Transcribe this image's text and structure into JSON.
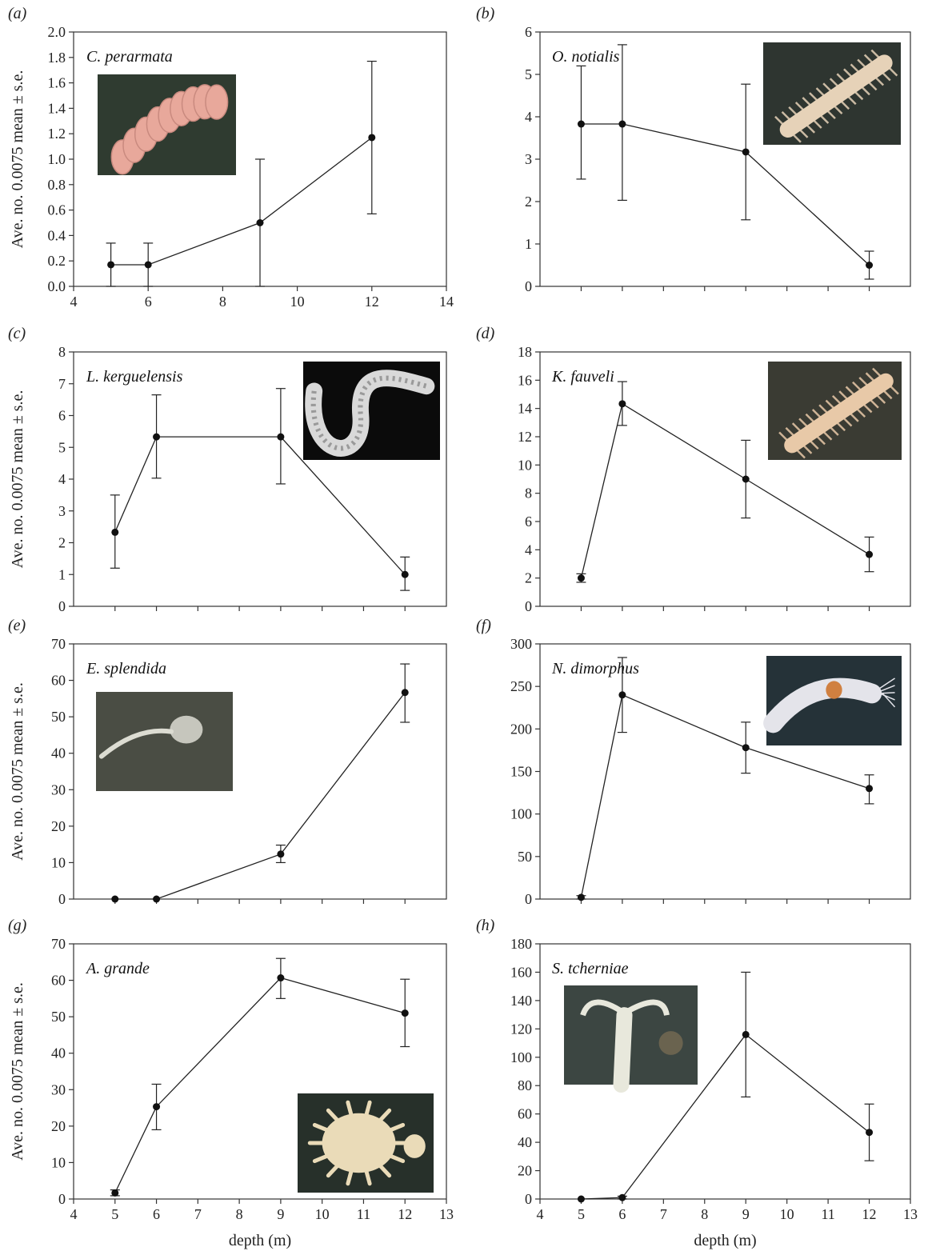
{
  "chart_data": [
    {
      "type": "line",
      "panel": "(a)",
      "species": "C. perarmata",
      "ylabel": "Ave. no. 0.0075 mean ± s.e.",
      "xlabel": "",
      "xlim": [
        4,
        14
      ],
      "ylim": [
        0,
        2.0
      ],
      "xticks": [
        4,
        6,
        8,
        10,
        12,
        14
      ],
      "xtick_labels": [
        "4",
        "6",
        "8",
        "10",
        "12",
        "14"
      ],
      "yticks": [
        0,
        0.2,
        0.4,
        0.6,
        0.8,
        1.0,
        1.2,
        1.4,
        1.6,
        1.8,
        2.0
      ],
      "ytick_labels": [
        "0.0",
        "0.2",
        "0.4",
        "0.6",
        "0.8",
        "1.0",
        "1.2",
        "1.4",
        "1.6",
        "1.8",
        "2.0"
      ],
      "x": [
        5,
        6,
        9,
        12
      ],
      "y": [
        0.17,
        0.17,
        0.5,
        1.17
      ],
      "err_low": [
        0.0,
        0.0,
        0.0,
        0.57
      ],
      "err_high": [
        0.34,
        0.34,
        1.0,
        1.77
      ],
      "photo": {
        "name": "c-perarmata-photo",
        "kind": "pinkworm",
        "bg": "#2f3b30",
        "fg": "#e8a89b",
        "pos": "upper-left"
      }
    },
    {
      "type": "line",
      "panel": "(b)",
      "species": "O. notialis",
      "ylabel": "",
      "xlabel": "",
      "xlim": [
        4,
        13
      ],
      "ylim": [
        0,
        6
      ],
      "xticks": [
        5,
        6,
        7,
        8,
        9,
        10,
        11,
        12
      ],
      "xtick_labels": [],
      "yticks": [
        0,
        1,
        2,
        3,
        4,
        5,
        6
      ],
      "ytick_labels": [
        "0",
        "1",
        "2",
        "3",
        "4",
        "5",
        "6"
      ],
      "x": [
        5,
        6,
        9,
        12
      ],
      "y": [
        3.83,
        3.83,
        3.17,
        0.5
      ],
      "err_low": [
        2.53,
        2.03,
        1.57,
        0.17
      ],
      "err_high": [
        5.2,
        5.7,
        4.77,
        0.83
      ],
      "photo": {
        "name": "o-notialis-photo",
        "kind": "bristleworm",
        "bg": "#2e3530",
        "fg": "#e6d2b8",
        "pos": "upper-right"
      }
    },
    {
      "type": "line",
      "panel": "(c)",
      "species": "L. kerguelensis",
      "ylabel": "Ave. no. 0.0075 mean ± s.e.",
      "xlabel": "",
      "xlim": [
        4,
        13
      ],
      "ylim": [
        0,
        8
      ],
      "xticks": [
        5,
        6,
        7,
        8,
        9,
        10,
        11,
        12
      ],
      "xtick_labels": [],
      "yticks": [
        0,
        1,
        2,
        3,
        4,
        5,
        6,
        7,
        8
      ],
      "ytick_labels": [
        "0",
        "1",
        "2",
        "3",
        "4",
        "5",
        "6",
        "7",
        "8"
      ],
      "x": [
        5,
        6,
        9,
        12
      ],
      "y": [
        2.33,
        5.33,
        5.33,
        1.0
      ],
      "err_low": [
        1.2,
        4.03,
        3.85,
        0.5
      ],
      "err_high": [
        3.5,
        6.65,
        6.85,
        1.55
      ],
      "photo": {
        "name": "l-kerguelensis-photo",
        "kind": "curlworm",
        "bg": "#0b0b0b",
        "fg": "#d9d9d9",
        "pos": "upper-right"
      }
    },
    {
      "type": "line",
      "panel": "(d)",
      "species": "K. fauveli",
      "ylabel": "",
      "xlabel": "",
      "xlim": [
        4,
        13
      ],
      "ylim": [
        0,
        18
      ],
      "xticks": [
        5,
        6,
        7,
        8,
        9,
        10,
        11,
        12
      ],
      "xtick_labels": [],
      "yticks": [
        0,
        2,
        4,
        6,
        8,
        10,
        12,
        14,
        16,
        18
      ],
      "ytick_labels": [
        "0",
        "2",
        "4",
        "6",
        "8",
        "10",
        "12",
        "14",
        "16",
        "18"
      ],
      "x": [
        5,
        6,
        9,
        12
      ],
      "y": [
        2.0,
        14.33,
        9.0,
        3.67
      ],
      "err_low": [
        1.7,
        12.8,
        6.25,
        2.45
      ],
      "err_high": [
        2.3,
        15.9,
        11.75,
        4.9
      ],
      "photo": {
        "name": "k-fauveli-photo",
        "kind": "bristleworm",
        "bg": "#3a3b33",
        "fg": "#e8c9a8",
        "pos": "upper-right"
      }
    },
    {
      "type": "line",
      "panel": "(e)",
      "species": "E. splendida",
      "ylabel": "Ave. no. 0.0075 mean ± s.e.",
      "xlabel": "",
      "xlim": [
        4,
        13
      ],
      "ylim": [
        0,
        70
      ],
      "xticks": [
        5,
        6,
        7,
        8,
        9,
        10,
        11,
        12
      ],
      "xtick_labels": [],
      "yticks": [
        0,
        10,
        20,
        30,
        40,
        50,
        60,
        70
      ],
      "ytick_labels": [
        "0",
        "10",
        "20",
        "30",
        "40",
        "50",
        "60",
        "70"
      ],
      "x": [
        5,
        6,
        9,
        12
      ],
      "y": [
        0.0,
        0.0,
        12.33,
        56.67
      ],
      "err_low": [
        0.0,
        0.0,
        10.0,
        48.5
      ],
      "err_high": [
        0.0,
        0.0,
        14.8,
        64.5
      ],
      "photo": {
        "name": "e-splendida-photo",
        "kind": "thinworm",
        "bg": "#4a4d44",
        "fg": "#dcdcd2",
        "pos": "upper-left"
      }
    },
    {
      "type": "line",
      "panel": "(f)",
      "species": "N. dimorphus",
      "ylabel": "",
      "xlabel": "",
      "xlim": [
        4,
        13
      ],
      "ylim": [
        0,
        300
      ],
      "xticks": [
        5,
        6,
        7,
        8,
        9,
        10,
        11,
        12
      ],
      "xtick_labels": [],
      "yticks": [
        0,
        50,
        100,
        150,
        200,
        250,
        300
      ],
      "ytick_labels": [
        "0",
        "50",
        "100",
        "150",
        "200",
        "250",
        "300"
      ],
      "x": [
        5,
        6,
        9,
        12
      ],
      "y": [
        2,
        240,
        178,
        130
      ],
      "err_low": [
        0,
        196,
        148,
        112
      ],
      "err_high": [
        4,
        284,
        208,
        146
      ],
      "photo": {
        "name": "n-dimorphus-photo",
        "kind": "amphipod",
        "bg": "#253238",
        "fg": "#e4e4ea",
        "pos": "upper-right"
      }
    },
    {
      "type": "line",
      "panel": "(g)",
      "species": "A. grande",
      "ylabel": "Ave. no. 0.0075 mean ± s.e.",
      "xlabel": "depth (m)",
      "xlim": [
        4,
        13
      ],
      "ylim": [
        0,
        70
      ],
      "xticks": [
        4,
        5,
        6,
        7,
        8,
        9,
        10,
        11,
        12,
        13
      ],
      "xtick_labels": [
        "4",
        "5",
        "6",
        "7",
        "8",
        "9",
        "10",
        "11",
        "12",
        "13"
      ],
      "yticks": [
        0,
        10,
        20,
        30,
        40,
        50,
        60,
        70
      ],
      "ytick_labels": [
        "0",
        "10",
        "20",
        "30",
        "40",
        "50",
        "60",
        "70"
      ],
      "x": [
        5,
        6,
        9,
        12
      ],
      "y": [
        1.67,
        25.33,
        60.67,
        51.0
      ],
      "err_low": [
        0.9,
        19.0,
        55.0,
        41.8
      ],
      "err_high": [
        2.5,
        31.5,
        66.0,
        60.3
      ],
      "photo": {
        "name": "a-grande-photo",
        "kind": "isopod",
        "bg": "#27302a",
        "fg": "#eadbb8",
        "pos": "lower-right"
      }
    },
    {
      "type": "line",
      "panel": "(h)",
      "species": "S. tcherniae",
      "ylabel": "",
      "xlabel": "depth (m)",
      "xlim": [
        4,
        13
      ],
      "ylim": [
        0,
        180
      ],
      "xticks": [
        4,
        5,
        6,
        7,
        8,
        9,
        10,
        11,
        12,
        13
      ],
      "xtick_labels": [
        "4",
        "5",
        "6",
        "7",
        "8",
        "9",
        "10",
        "11",
        "12",
        "13"
      ],
      "yticks": [
        0,
        20,
        40,
        60,
        80,
        100,
        120,
        140,
        160,
        180
      ],
      "ytick_labels": [
        "0",
        "20",
        "40",
        "60",
        "80",
        "100",
        "120",
        "140",
        "160",
        "180"
      ],
      "x": [
        5,
        6,
        9,
        12
      ],
      "y": [
        0.0,
        1.0,
        116.0,
        47.0
      ],
      "err_low": [
        0.0,
        0.0,
        72.0,
        27.0
      ],
      "err_high": [
        0.0,
        2.0,
        160.0,
        67.0
      ],
      "photo": {
        "name": "s-tcherniae-photo",
        "kind": "spionid",
        "bg": "#3c4642",
        "fg": "#e8e8dc",
        "pos": "upper-left"
      }
    }
  ]
}
